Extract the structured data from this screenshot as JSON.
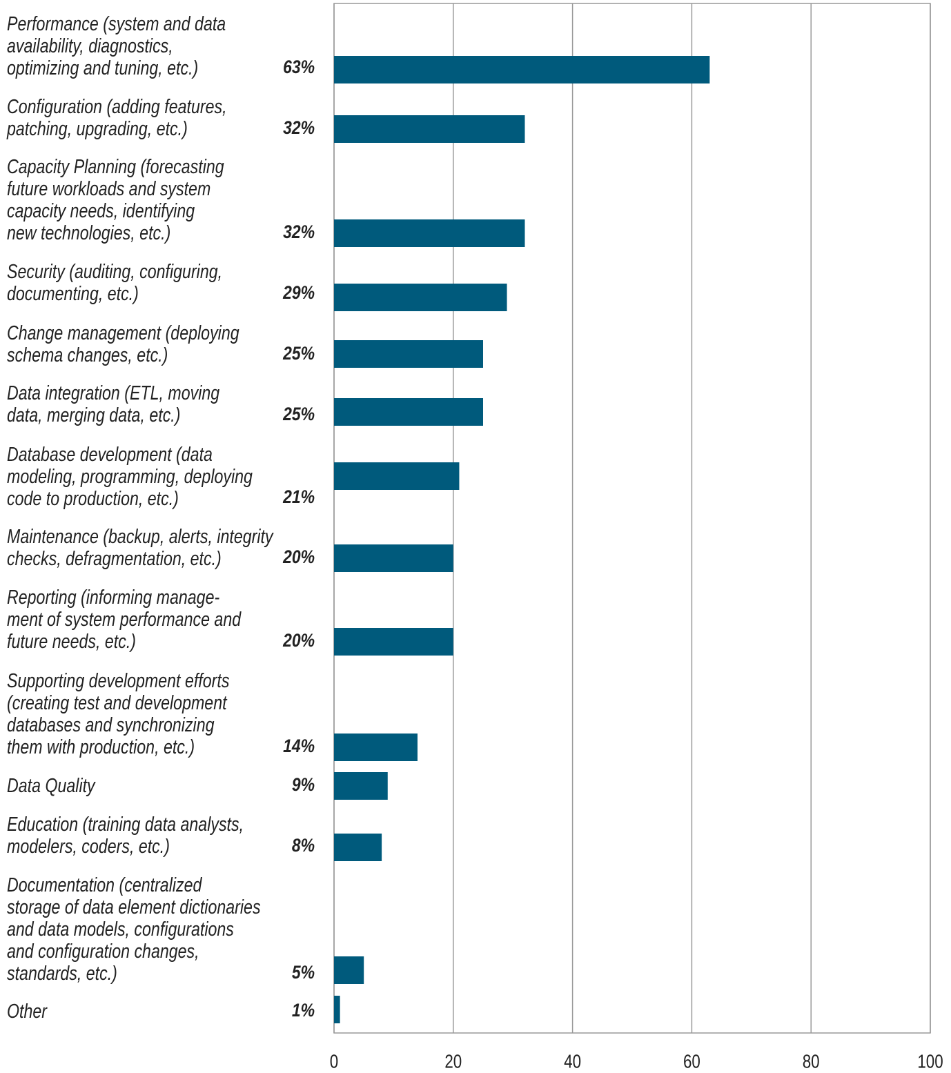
{
  "chart_data": {
    "type": "hbar",
    "categories": [
      "Performance (system and data\navailability, diagnostics,\noptimizing and tuning, etc.)",
      "Configuration (adding features,\npatching, upgrading, etc.)",
      "Capacity Planning (forecasting\nfuture workloads and system\ncapacity needs, identifying\nnew technologies, etc.)",
      "Security (auditing, configuring,\ndocumenting, etc.)",
      "Change management (deploying\nschema changes, etc.)",
      "Data integration (ETL, moving\ndata, merging data, etc.)",
      "Database development (data\nmodeling, programming, deploying\ncode to production, etc.)",
      "Maintenance (backup, alerts, integrity\nchecks, defragmentation, etc.)",
      "Reporting (informing manage-\nment of system performance and\nfuture needs, etc.)",
      "Supporting development efforts\n(creating test and development\ndatabases and synchronizing\nthem with production, etc.)",
      "Data Quality",
      "Education (training data analysts,\nmodelers, coders, etc.)",
      "Documentation (centralized\nstorage of data element dictionaries\nand data models, configurations\nand configuration changes,\nstandards, etc.)",
      "Other"
    ],
    "values": [
      63,
      32,
      32,
      29,
      25,
      25,
      21,
      20,
      20,
      14,
      9,
      8,
      5,
      1
    ],
    "value_labels": [
      "63%",
      "32%",
      "32%",
      "29%",
      "25%",
      "25%",
      "21%",
      "20%",
      "20%",
      "14%",
      "9%",
      "8%",
      "5%",
      "1%"
    ],
    "color": "#005a7c",
    "xlim": [
      0,
      100
    ],
    "xticks": [
      0,
      20,
      40,
      60,
      80,
      100
    ],
    "grid": true
  }
}
